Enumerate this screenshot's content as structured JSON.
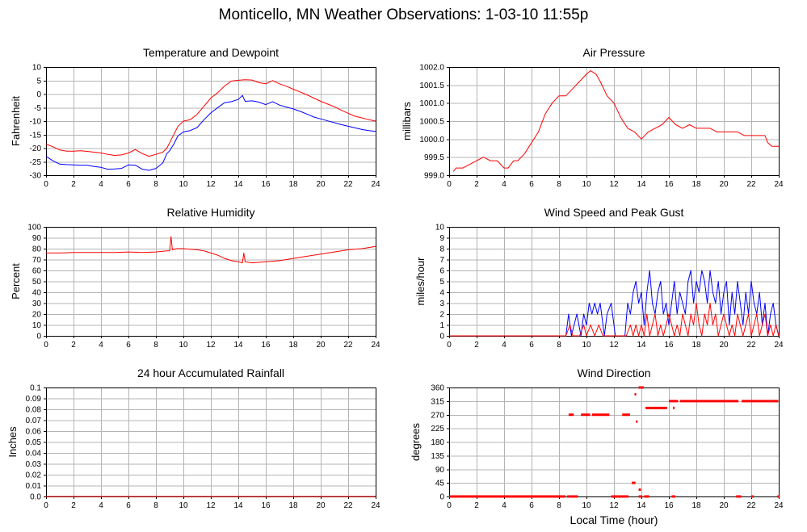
{
  "page": {
    "title": "Monticello, MN Weather Observations: 1-03-10 11:55p"
  },
  "chart_data": [
    {
      "id": "temp",
      "type": "line",
      "title": "Temperature and Dewpoint",
      "xlabel": "",
      "ylabel": "Fahrenheit",
      "xlim": [
        0,
        24
      ],
      "ylim": [
        -30,
        10
      ],
      "xticks": [
        0,
        2,
        4,
        6,
        8,
        10,
        12,
        14,
        16,
        18,
        20,
        22,
        24
      ],
      "yticks": [
        -30,
        -25,
        -20,
        -15,
        -10,
        -5,
        0,
        5,
        10
      ],
      "ytick_decimals": 0,
      "grid": true,
      "series": [
        {
          "color": "#ff0000",
          "x": [
            0,
            0.5,
            1,
            1.5,
            2,
            2.5,
            3,
            3.5,
            4,
            4.5,
            5,
            5.5,
            6,
            6.5,
            7,
            7.5,
            8,
            8.5,
            8.8,
            9,
            9.3,
            9.6,
            10,
            10.5,
            11,
            11.5,
            12,
            12.5,
            13,
            13.5,
            14,
            14.5,
            15,
            15.5,
            16,
            16.5,
            17,
            17.5,
            18,
            18.5,
            19,
            19.5,
            20,
            20.5,
            21,
            21.5,
            22,
            22.5,
            23,
            23.5,
            24
          ],
          "y": [
            -18.5,
            -19.5,
            -20.7,
            -21.1,
            -21.1,
            -21,
            -21.2,
            -21.5,
            -21.8,
            -22.3,
            -22.7,
            -22.5,
            -21.8,
            -20.5,
            -22,
            -23,
            -22.3,
            -21.5,
            -20,
            -18,
            -15,
            -12,
            -10,
            -9.5,
            -7.5,
            -4.5,
            -1.5,
            0.5,
            3,
            4.8,
            5.1,
            5.3,
            5.2,
            4.2,
            3.8,
            5,
            3.8,
            2.9,
            1.8,
            0.8,
            -0.3,
            -1.5,
            -2.7,
            -3.7,
            -4.7,
            -6,
            -7.1,
            -8.2,
            -8.8,
            -9.5,
            -10
          ]
        },
        {
          "color": "#0000ff",
          "x": [
            0,
            0.5,
            1,
            1.5,
            2,
            2.5,
            3,
            3.5,
            4,
            4.5,
            5,
            5.5,
            6,
            6.5,
            7,
            7.5,
            8,
            8.5,
            8.8,
            9,
            9.3,
            9.6,
            10,
            10.5,
            11,
            11.5,
            12,
            12.5,
            13,
            13.5,
            14,
            14.3,
            14.5,
            15,
            15.5,
            16,
            16.5,
            17,
            17.5,
            18,
            18.5,
            19,
            19.5,
            20,
            20.5,
            21,
            21.5,
            22,
            22.5,
            23,
            23.5,
            24
          ],
          "y": [
            -23,
            -24.7,
            -25.9,
            -26.1,
            -26.2,
            -26.3,
            -26.3,
            -26.8,
            -27.1,
            -27.8,
            -27.7,
            -27.5,
            -26.2,
            -26.3,
            -27.8,
            -28.2,
            -27.5,
            -25.5,
            -22,
            -21,
            -18.5,
            -15.5,
            -14,
            -13.5,
            -12.4,
            -9.5,
            -7,
            -5,
            -3.2,
            -2.8,
            -2,
            -0.5,
            -2.7,
            -2.5,
            -3,
            -3.9,
            -2.8,
            -4.1,
            -4.8,
            -5.5,
            -6.4,
            -7.4,
            -8.5,
            -9.2,
            -9.9,
            -10.6,
            -11.3,
            -11.9,
            -12.5,
            -13.1,
            -13.5,
            -13.8
          ]
        }
      ]
    },
    {
      "id": "pressure",
      "type": "line",
      "title": "Air Pressure",
      "xlabel": "",
      "ylabel": "millibars",
      "xlim": [
        0,
        24
      ],
      "ylim": [
        999.0,
        1002.0
      ],
      "xticks": [
        0,
        2,
        4,
        6,
        8,
        10,
        12,
        14,
        16,
        18,
        20,
        22,
        24
      ],
      "yticks": [
        999.0,
        999.5,
        1000.0,
        1000.5,
        1001.0,
        1001.5,
        1002.0
      ],
      "ytick_decimals": 1,
      "grid": true,
      "series": [
        {
          "color": "#ff0000",
          "x": [
            0.3,
            0.5,
            1,
            1.5,
            2,
            2.5,
            3,
            3.5,
            4,
            4.3,
            4.7,
            5,
            5.5,
            6,
            6.5,
            7,
            7.5,
            8,
            8.5,
            9,
            9.5,
            10,
            10.3,
            10.7,
            11,
            11.5,
            12,
            12.5,
            13,
            13.5,
            14,
            14.5,
            15,
            15.5,
            16,
            16.5,
            17,
            17.5,
            18,
            18.5,
            19,
            19.5,
            20,
            20.5,
            21,
            21.5,
            22,
            22.5,
            23,
            23.2,
            23.5,
            24
          ],
          "y": [
            999.1,
            999.2,
            999.2,
            999.3,
            999.4,
            999.5,
            999.4,
            999.4,
            999.2,
            999.2,
            999.4,
            999.4,
            999.6,
            999.9,
            1000.2,
            1000.7,
            1001.0,
            1001.2,
            1001.2,
            1001.4,
            1001.6,
            1001.8,
            1001.9,
            1001.8,
            1001.6,
            1001.2,
            1001.0,
            1000.6,
            1000.3,
            1000.2,
            1000.0,
            1000.2,
            1000.3,
            1000.4,
            1000.6,
            1000.4,
            1000.3,
            1000.4,
            1000.3,
            1000.3,
            1000.3,
            1000.2,
            1000.2,
            1000.2,
            1000.2,
            1000.1,
            1000.1,
            1000.1,
            1000.1,
            999.9,
            999.8,
            999.8
          ]
        }
      ]
    },
    {
      "id": "humidity",
      "type": "line",
      "title": "Relative Humidity",
      "xlabel": "",
      "ylabel": "Percent",
      "xlim": [
        0,
        24
      ],
      "ylim": [
        0,
        100
      ],
      "xticks": [
        0,
        2,
        4,
        6,
        8,
        10,
        12,
        14,
        16,
        18,
        20,
        22,
        24
      ],
      "yticks": [
        0,
        10,
        20,
        30,
        40,
        50,
        60,
        70,
        80,
        90,
        100
      ],
      "ytick_decimals": 0,
      "grid": true,
      "series": [
        {
          "color": "#ff0000",
          "x": [
            0,
            1,
            2,
            3,
            4,
            5,
            6,
            7,
            8,
            8.8,
            9,
            9.1,
            9.2,
            9.5,
            10,
            11,
            11.5,
            12,
            12.5,
            13,
            13.5,
            14,
            14.3,
            14.4,
            14.5,
            15,
            16,
            17,
            18,
            19,
            20,
            21,
            22,
            23,
            24
          ],
          "y": [
            76,
            76,
            76.5,
            76.5,
            76.5,
            76.5,
            77,
            76.5,
            77,
            78,
            78,
            91,
            79,
            80,
            80,
            79,
            78,
            76,
            74,
            71,
            69,
            68,
            67,
            76,
            68,
            67,
            68,
            69,
            71,
            73,
            75,
            77,
            79,
            80,
            82
          ]
        }
      ]
    },
    {
      "id": "wind",
      "type": "line",
      "title": "Wind Speed and Peak Gust",
      "xlabel": "",
      "ylabel": "miles/hour",
      "xlim": [
        0,
        24
      ],
      "ylim": [
        0,
        10
      ],
      "xticks": [
        0,
        2,
        4,
        6,
        8,
        10,
        12,
        14,
        16,
        18,
        20,
        22,
        24
      ],
      "yticks": [
        0,
        1,
        2,
        3,
        4,
        5,
        6,
        7,
        8,
        9,
        10
      ],
      "ytick_decimals": 0,
      "grid": true,
      "series": [
        {
          "color": "#0000ff",
          "x": [
            0,
            8.5,
            8.7,
            8.9,
            9.1,
            9.3,
            9.6,
            9.8,
            10,
            10.2,
            10.4,
            10.6,
            10.8,
            11,
            11.3,
            11.5,
            11.8,
            12.1,
            12.5,
            12.8,
            13.0,
            13.2,
            13.4,
            13.6,
            13.8,
            14.0,
            14.2,
            14.4,
            14.6,
            14.8,
            15.0,
            15.2,
            15.4,
            15.6,
            15.8,
            16.0,
            16.2,
            16.4,
            16.6,
            16.8,
            17.0,
            17.2,
            17.4,
            17.6,
            17.8,
            18.0,
            18.2,
            18.4,
            18.6,
            18.8,
            19.0,
            19.2,
            19.4,
            19.6,
            19.8,
            20.0,
            20.2,
            20.4,
            20.6,
            20.8,
            21.0,
            21.2,
            21.4,
            21.6,
            21.8,
            22.0,
            22.2,
            22.4,
            22.6,
            22.8,
            23.0,
            23.2,
            23.4,
            23.6,
            23.8,
            24
          ],
          "y": [
            0,
            0,
            2,
            0,
            1,
            2,
            0,
            2,
            1,
            3,
            2,
            3,
            2,
            3,
            0,
            2,
            3,
            0,
            0,
            0,
            3,
            2,
            4,
            5,
            3,
            4,
            1,
            4,
            6,
            3,
            2,
            4,
            5,
            2,
            3,
            1,
            3,
            5,
            2,
            4,
            3,
            2,
            5,
            6,
            3,
            5,
            4,
            6,
            5,
            3,
            6,
            4,
            3,
            5,
            2,
            4,
            5,
            1,
            4,
            2,
            5,
            3,
            1,
            4,
            2,
            5,
            3,
            2,
            4,
            1,
            3,
            0,
            2,
            3,
            1,
            0
          ]
        },
        {
          "color": "#ff0000",
          "x": [
            0,
            8.5,
            8.8,
            9.0,
            9.5,
            9.8,
            10.0,
            10.3,
            10.6,
            10.9,
            11.2,
            12.9,
            13.2,
            13.4,
            13.6,
            13.8,
            14.0,
            14.2,
            14.4,
            14.6,
            14.8,
            15.0,
            15.2,
            15.4,
            15.6,
            15.8,
            16.0,
            16.2,
            16.4,
            16.6,
            16.8,
            17.0,
            17.2,
            17.4,
            17.6,
            17.8,
            18.0,
            18.2,
            18.4,
            18.6,
            18.8,
            19.0,
            19.2,
            19.4,
            19.6,
            19.8,
            20.0,
            20.2,
            20.4,
            20.6,
            20.8,
            21.0,
            21.2,
            21.4,
            21.6,
            21.8,
            22.0,
            22.2,
            22.4,
            22.6,
            22.8,
            23.0,
            23.2,
            23.4,
            23.6,
            23.8,
            24
          ],
          "y": [
            0,
            0,
            1,
            0,
            0,
            1,
            0,
            1,
            0,
            1,
            0,
            0,
            1,
            0,
            1,
            0,
            1,
            0,
            2,
            0,
            1,
            2,
            0,
            1,
            0,
            1,
            2,
            1,
            0,
            1,
            0,
            2,
            1,
            0,
            2,
            1,
            3,
            1,
            0,
            2,
            1,
            3,
            1,
            2,
            0,
            1,
            2,
            1,
            0,
            1,
            0,
            2,
            1,
            0,
            1,
            2,
            0,
            1,
            2,
            0,
            1,
            2,
            0,
            1,
            0,
            1,
            0
          ]
        }
      ]
    },
    {
      "id": "rain",
      "type": "line",
      "title": "24 hour Accumulated Rainfall",
      "xlabel": "",
      "ylabel": "Inches",
      "xlim": [
        0,
        24
      ],
      "ylim": [
        0,
        0.1
      ],
      "xticks": [
        0,
        2,
        4,
        6,
        8,
        10,
        12,
        14,
        16,
        18,
        20,
        22,
        24
      ],
      "yticks": [
        0,
        0.01,
        0.02,
        0.03,
        0.04,
        0.05,
        0.06,
        0.07,
        0.08,
        0.09,
        0.1
      ],
      "ytick_decimals": 2,
      "ytick_labels": [
        "0.0",
        "0.01",
        "0.02",
        "0.03",
        "0.04",
        "0.05",
        "0.06",
        "0.07",
        "0.08",
        "0.09",
        "0.1"
      ],
      "grid": true,
      "series": [
        {
          "color": "#ff0000",
          "x": [
            0,
            24
          ],
          "y": [
            0,
            0
          ]
        }
      ]
    },
    {
      "id": "direction",
      "type": "scatter",
      "title": "Wind Direction",
      "xlabel": "Local Time (hour)",
      "ylabel": "degrees",
      "xlim": [
        0,
        24
      ],
      "ylim": [
        0,
        360
      ],
      "xticks": [
        0,
        2,
        4,
        6,
        8,
        10,
        12,
        14,
        16,
        18,
        20,
        22,
        24
      ],
      "yticks": [
        0,
        45,
        90,
        135,
        180,
        225,
        270,
        315,
        360
      ],
      "ytick_decimals": 0,
      "grid": true,
      "series": [
        {
          "color": "#ff0000",
          "segments": [
            [
              0,
              8.4,
              0
            ],
            [
              8.6,
              9.3,
              0
            ],
            [
              11.8,
              13.0,
              0
            ],
            [
              13.8,
              14.0,
              0
            ],
            [
              14.2,
              14.5,
              0
            ],
            [
              16.2,
              16.4,
              0
            ],
            [
              20.9,
              21.2,
              0
            ],
            [
              22.0,
              22.1,
              0
            ],
            [
              23.9,
              24.0,
              0
            ],
            [
              8.7,
              9.0,
              270
            ],
            [
              9.6,
              10.2,
              270
            ],
            [
              10.4,
              11.6,
              270
            ],
            [
              12.6,
              13.1,
              270
            ],
            [
              14.3,
              15.8,
              292.5
            ],
            [
              13.8,
              14.1,
              360
            ],
            [
              16.0,
              16.6,
              315
            ],
            [
              16.8,
              21.0,
              315
            ],
            [
              21.3,
              23.9,
              315
            ],
            [
              13.3,
              13.5,
              45
            ],
            [
              13.8,
              13.9,
              22.5
            ],
            [
              13.6,
              13.65,
              247.5
            ],
            [
              13.5,
              13.55,
              337.5
            ],
            [
              16.3,
              16.35,
              292.5
            ]
          ]
        }
      ]
    }
  ]
}
